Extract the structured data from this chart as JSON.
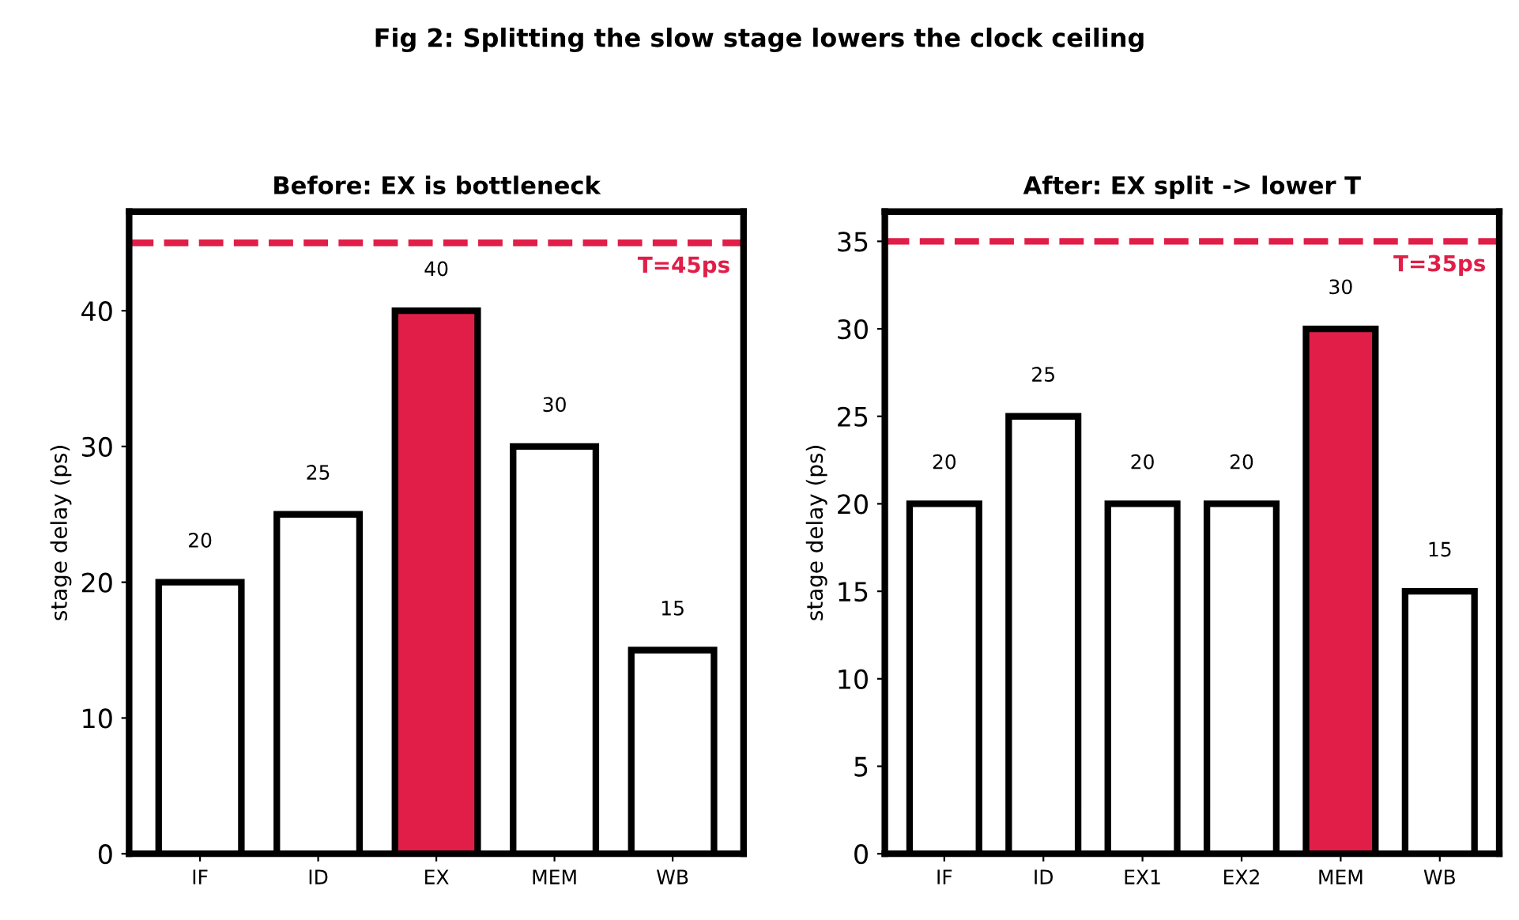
{
  "chart_data": [
    {
      "type": "bar",
      "title": "Before: EX is bottleneck",
      "annotations": [
        "Fig 2: Splitting the slow stage lowers the clock ceiling"
      ],
      "ylabel": "stage delay (ps)",
      "categories": [
        "IF",
        "ID",
        "EX",
        "MEM",
        "WB"
      ],
      "values": [
        20,
        25,
        40,
        30,
        15
      ],
      "colors": [
        "#ffffff",
        "#ffffff",
        "#e01e48",
        "#ffffff",
        "#ffffff"
      ],
      "ylim": [
        0,
        47.3
      ],
      "yticks": [
        0,
        10,
        20,
        30,
        40
      ],
      "data_labels": true,
      "grid": false,
      "legend": false,
      "ref_lines": [
        {
          "axis": "y",
          "value": 45,
          "label": "T=45ps",
          "color": "#e01e48",
          "line_style": "dashed"
        }
      ]
    },
    {
      "type": "bar",
      "title": "After: EX split -> lower T",
      "ylabel": "stage delay (ps)",
      "categories": [
        "IF",
        "ID",
        "EX1",
        "EX2",
        "MEM",
        "WB"
      ],
      "values": [
        20,
        25,
        20,
        20,
        30,
        15
      ],
      "colors": [
        "#ffffff",
        "#ffffff",
        "#ffffff",
        "#ffffff",
        "#e01e48",
        "#ffffff"
      ],
      "ylim": [
        0,
        36.7
      ],
      "yticks": [
        0,
        5,
        10,
        15,
        20,
        25,
        30,
        35
      ],
      "data_labels": true,
      "grid": false,
      "legend": false,
      "ref_lines": [
        {
          "axis": "y",
          "value": 35,
          "label": "T=35ps",
          "color": "#e01e48",
          "line_style": "dashed"
        }
      ]
    }
  ]
}
